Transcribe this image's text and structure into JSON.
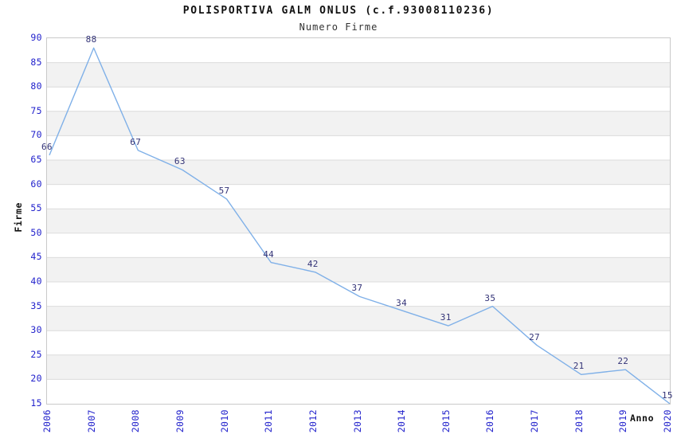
{
  "page": {
    "background": "#ffffff"
  },
  "chart_data": {
    "type": "line",
    "title": "POLISPORTIVA GALM ONLUS (c.f.93008110236)",
    "subtitle": "Numero Firme",
    "xlabel": "Anno",
    "ylabel": "Firme",
    "x": [
      "2006",
      "2007",
      "2008",
      "2009",
      "2010",
      "2011",
      "2012",
      "2013",
      "2014",
      "2015",
      "2016",
      "2017",
      "2018",
      "2019",
      "2020"
    ],
    "values": [
      66,
      88,
      67,
      63,
      57,
      44,
      42,
      37,
      34,
      31,
      35,
      27,
      21,
      22,
      15
    ],
    "point_labels": [
      "66",
      "88",
      "67",
      "63",
      "57",
      "44",
      "42",
      "37",
      "34",
      "31",
      "35",
      "27",
      "21",
      "22",
      "15"
    ],
    "ylim": [
      15,
      90
    ],
    "ytick_step": 5,
    "ytick_labels": [
      "90",
      "85",
      "80",
      "75",
      "70",
      "65",
      "60",
      "55",
      "50",
      "45",
      "40",
      "35",
      "30",
      "25",
      "20",
      "15"
    ],
    "grid": "horizontal",
    "band_fill": "alternating",
    "legend": "none",
    "colors": {
      "line": "#7fb0e8",
      "tick_label": "#2222cc",
      "point_label": "#333377",
      "band": "#f2f2f2",
      "gridline": "#dcdcdc",
      "border": "#c9c9c9",
      "title": "#111111",
      "subtitle": "#333333",
      "axis_title": "#111111"
    }
  }
}
